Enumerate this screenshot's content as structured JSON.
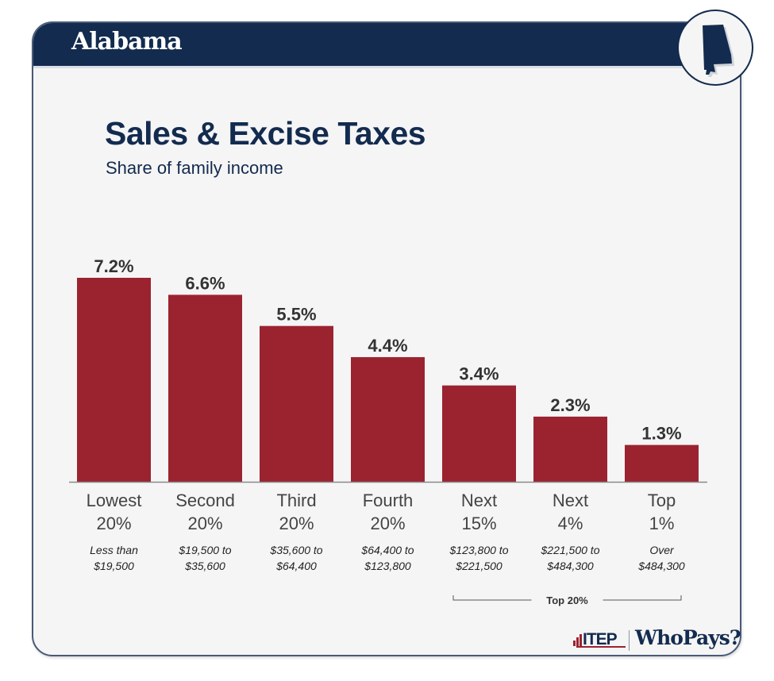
{
  "header": {
    "state": "Alabama",
    "state_icon": "alabama-map-icon"
  },
  "titles": {
    "title": "Sales & Excise Taxes",
    "subtitle": "Share of family income"
  },
  "colors": {
    "navy": "#132b4f",
    "bar": "#9b2330",
    "background": "#f5f5f5"
  },
  "chart_data": {
    "type": "bar",
    "title": "Sales & Excise Taxes",
    "subtitle": "Share of family income",
    "xlabel": "",
    "ylabel": "",
    "ylim": [
      0,
      7.2
    ],
    "grid": false,
    "categories": [
      "Lowest 20%",
      "Second 20%",
      "Third 20%",
      "Fourth 20%",
      "Next 15%",
      "Next 4%",
      "Top 1%"
    ],
    "category_lines": [
      [
        "Lowest",
        "20%"
      ],
      [
        "Second",
        "20%"
      ],
      [
        "Third",
        "20%"
      ],
      [
        "Fourth",
        "20%"
      ],
      [
        "Next",
        "15%"
      ],
      [
        "Next",
        "4%"
      ],
      [
        "Top",
        "1%"
      ]
    ],
    "income_ranges": [
      [
        "Less than",
        "$19,500"
      ],
      [
        "$19,500 to",
        "$35,600"
      ],
      [
        "$35,600 to",
        "$64,400"
      ],
      [
        "$64,400 to",
        "$123,800"
      ],
      [
        "$123,800 to",
        "$221,500"
      ],
      [
        "$221,500 to",
        "$484,300"
      ],
      [
        "Over",
        "$484,300"
      ]
    ],
    "values": [
      7.2,
      6.6,
      5.5,
      4.4,
      3.4,
      2.3,
      1.3
    ],
    "value_labels": [
      "7.2%",
      "6.6%",
      "5.5%",
      "4.4%",
      "3.4%",
      "2.3%",
      "1.3%"
    ],
    "unit": "%",
    "annotations": [
      {
        "text": "Top 20%",
        "spans": [
          "Next 15%",
          "Top 1%"
        ]
      }
    ]
  },
  "footer": {
    "itep_label": "ITEP",
    "whopays_label": "WhoPays?"
  }
}
